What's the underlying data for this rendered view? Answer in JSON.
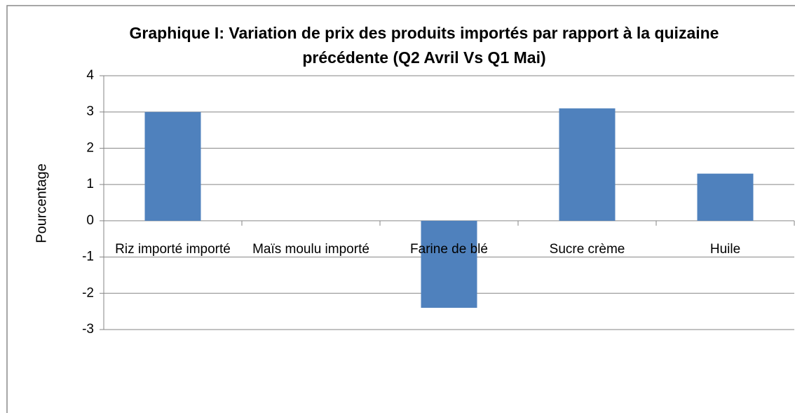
{
  "chart_data": {
    "type": "bar",
    "title": "Graphique I: Variation de prix des produits importés par rapport à la quizaine précédente (Q2 Avril Vs Q1 Mai)",
    "y_label": "Pourcentage",
    "categories": [
      "Riz importé importé",
      "Maïs moulu importé",
      "Farine de blé",
      "Sucre crème",
      "Huile"
    ],
    "values": [
      3,
      0,
      -2.4,
      3.1,
      1.3
    ],
    "color": "#4f81bd",
    "ylim": [
      -3,
      4
    ],
    "yticks": [
      -3,
      -2,
      -1,
      0,
      1,
      2,
      3,
      4
    ],
    "grid": true
  }
}
